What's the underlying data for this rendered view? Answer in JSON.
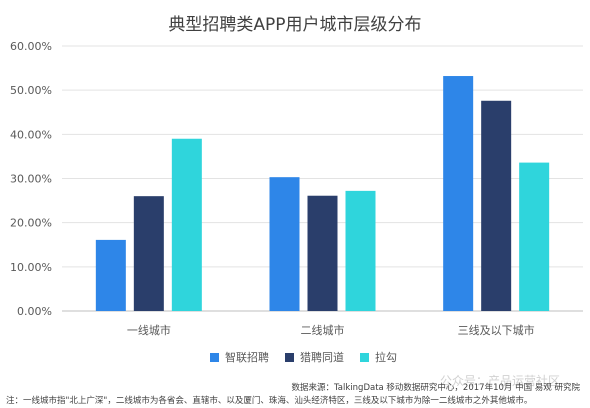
{
  "chart_data": {
    "type": "bar",
    "title": "典型招聘类APP用户城市层级分布",
    "categories": [
      "一线城市",
      "二线城市",
      "三线及以下城市"
    ],
    "series": [
      {
        "name": "智联招聘",
        "color": "#2e86e8",
        "values": [
          16.1,
          30.3,
          53.2
        ]
      },
      {
        "name": "猎聘同道",
        "color": "#2a3e6b",
        "values": [
          26.0,
          26.1,
          47.6
        ]
      },
      {
        "name": "拉勾",
        "color": "#2fd5dc",
        "values": [
          39.0,
          27.2,
          33.6
        ]
      }
    ],
    "ylim": [
      0,
      60
    ],
    "yticks": [
      "0.00%",
      "10.00%",
      "20.00%",
      "30.00%",
      "40.00%",
      "50.00%",
      "60.00%"
    ],
    "grid": true,
    "legend_position": "bottom"
  },
  "footer": {
    "source": "数据来源：TalkingData 移动数据研究中心，2017年10月 中国  易观  研究院",
    "note": "注：一线城市指\"北上广深\"，二线城市为各省会、直辖市、以及厦门、珠海、汕头经济特区，三线及以下城市为除一二线城市之外其他城市。",
    "watermark": "公众号：产品运营社区"
  }
}
